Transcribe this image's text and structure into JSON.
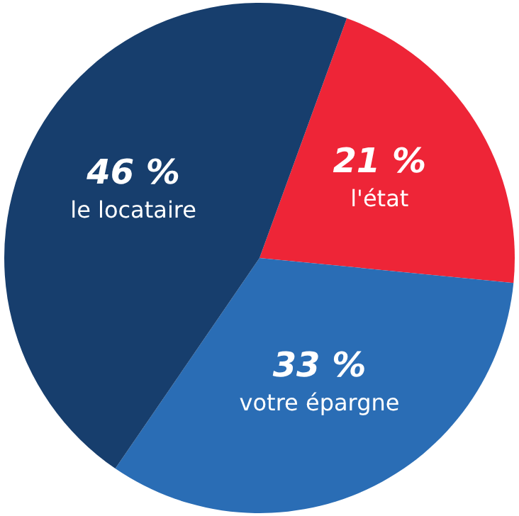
{
  "chart_data": {
    "type": "pie",
    "categories": [
      "l'état",
      "votre épargne",
      "le locataire"
    ],
    "values": [
      21,
      33,
      46
    ],
    "value_labels": [
      "21 %",
      "33 %",
      "46 %"
    ],
    "colors": [
      "#ee2537",
      "#2a6db5",
      "#173e6d"
    ]
  }
}
